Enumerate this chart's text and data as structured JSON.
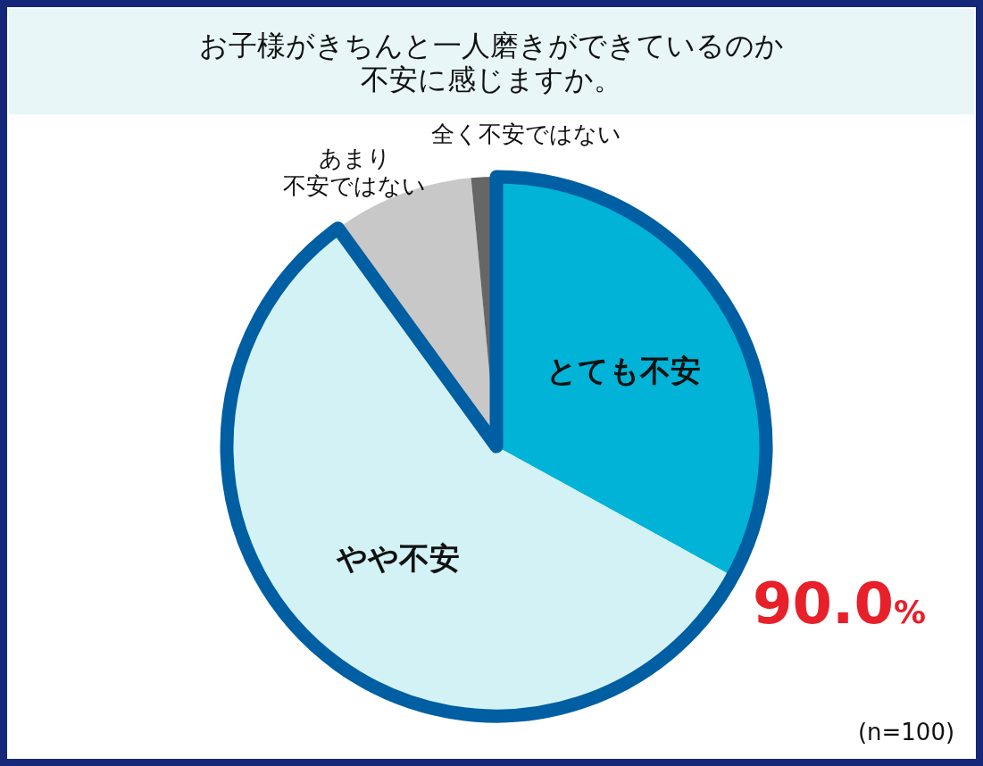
{
  "chart_data": {
    "type": "pie",
    "title": "お子様がきちんと一人磨きができているのか不安に感じますか。",
    "categories": [
      "とても不安",
      "やや不安",
      "あまり不安ではない",
      "全く不安ではない"
    ],
    "values": [
      33,
      57,
      8.5,
      1.5
    ],
    "colors": [
      "#00b3d7",
      "#d3f2f6",
      "#c8c8c8",
      "#666666"
    ],
    "annotations": [
      "90.0%",
      "(n=100)"
    ]
  }
}
